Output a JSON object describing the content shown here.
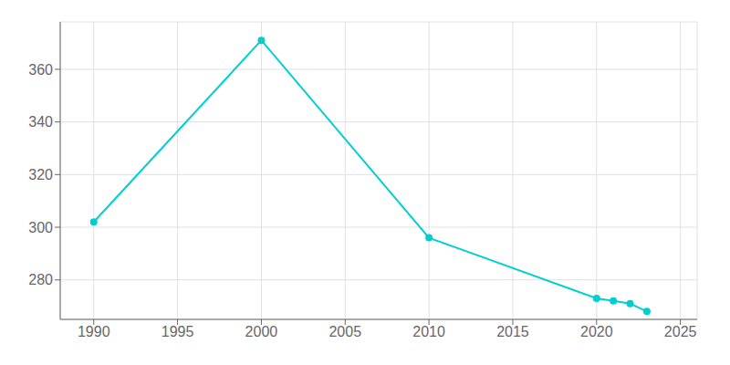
{
  "chart_data": {
    "type": "line",
    "x": [
      1990,
      2000,
      2010,
      2020,
      2021,
      2022,
      2023
    ],
    "values": [
      302,
      371,
      296,
      273,
      272,
      271,
      268
    ],
    "color": "#00CED1",
    "marker": "circle",
    "xlim": [
      1988,
      2026
    ],
    "ylim": [
      265,
      378
    ],
    "xticks": [
      1990,
      1995,
      2000,
      2005,
      2010,
      2015,
      2020,
      2025
    ],
    "yticks": [
      280,
      300,
      320,
      340,
      360
    ],
    "grid": true
  }
}
